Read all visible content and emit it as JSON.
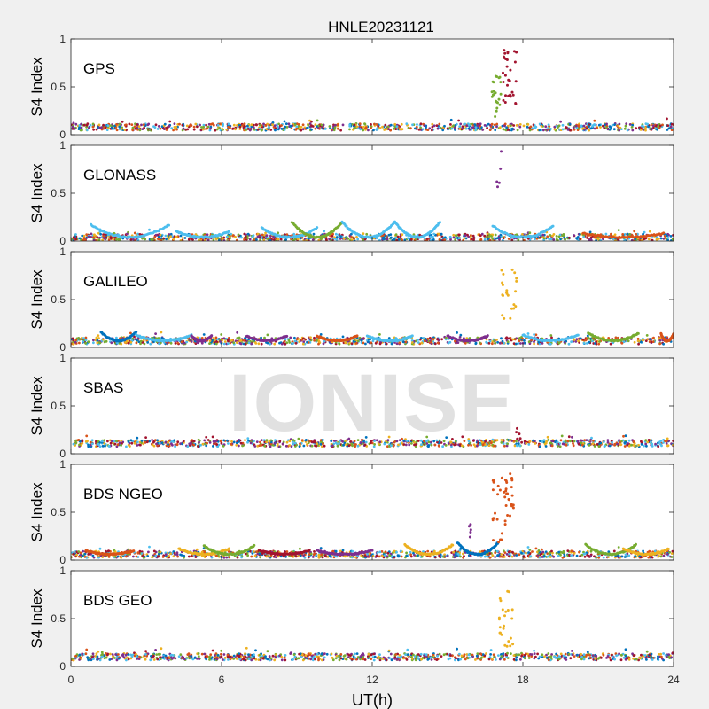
{
  "chart_data": {
    "type": "scatter",
    "title": "HNLE20231121",
    "xlabel": "UT(h)",
    "ylabel": "S4 Index",
    "xlim": [
      0,
      24
    ],
    "ylim": [
      0,
      1
    ],
    "xticks": [
      "0",
      "6",
      "12",
      "18",
      "24"
    ],
    "yticks": [
      "0",
      "0.5",
      "1"
    ],
    "grid": false,
    "watermark": "IONISE",
    "series_colors": [
      "#0072BD",
      "#D95319",
      "#EDB120",
      "#7E2F8E",
      "#77AC30",
      "#4DBEEE",
      "#A2142F"
    ],
    "panels": [
      {
        "label": "GPS",
        "label_color": "#000000",
        "baseline": 0.08,
        "arcs": [],
        "spikes": [
          {
            "x_range": [
              16.75,
              17.15
            ],
            "y_range": [
              0.12,
              0.62
            ],
            "color": "#77AC30",
            "count": 22
          },
          {
            "x_range": [
              17.2,
              17.75
            ],
            "y_range": [
              0.3,
              0.9
            ],
            "color": "#A2142F",
            "count": 30
          }
        ]
      },
      {
        "label": "GLONASS",
        "label_color": "#000000",
        "baseline": 0.04,
        "arcs": [
          {
            "x": [
              0.8,
              3.9
            ],
            "peak": 0.17,
            "color": "#4DBEEE"
          },
          {
            "x": [
              4.2,
              6.3
            ],
            "peak": 0.1,
            "color": "#4DBEEE"
          },
          {
            "x": [
              7.6,
              9.8
            ],
            "peak": 0.14,
            "color": "#4DBEEE"
          },
          {
            "x": [
              8.8,
              10.8
            ],
            "peak": 0.2,
            "color": "#77AC30"
          },
          {
            "x": [
              10.8,
              12.9
            ],
            "peak": 0.2,
            "color": "#4DBEEE"
          },
          {
            "x": [
              12.9,
              14.7
            ],
            "peak": 0.2,
            "color": "#4DBEEE"
          },
          {
            "x": [
              16.8,
              19.2
            ],
            "peak": 0.16,
            "color": "#4DBEEE"
          },
          {
            "x": [
              20.4,
              23.6
            ],
            "peak": 0.08,
            "color": "#D95319"
          }
        ],
        "spikes": [
          {
            "x_range": [
              16.95,
              17.15
            ],
            "y_range": [
              0.5,
              0.95
            ],
            "color": "#7E2F8E",
            "count": 5
          }
        ]
      },
      {
        "label": "GALILEO",
        "label_color": "#000000",
        "baseline": 0.07,
        "arcs": [
          {
            "x": [
              1.2,
              2.6
            ],
            "peak": 0.16,
            "color": "#0072BD"
          },
          {
            "x": [
              2.6,
              4.8
            ],
            "peak": 0.13,
            "color": "#4DBEEE"
          },
          {
            "x": [
              4.8,
              5.6
            ],
            "peak": 0.12,
            "color": "#7E2F8E"
          },
          {
            "x": [
              7.0,
              8.6
            ],
            "peak": 0.12,
            "color": "#7E2F8E"
          },
          {
            "x": [
              9.8,
              11.4
            ],
            "peak": 0.12,
            "color": "#D95319"
          },
          {
            "x": [
              11.8,
              13.6
            ],
            "peak": 0.12,
            "color": "#4DBEEE"
          },
          {
            "x": [
              15.0,
              16.6
            ],
            "peak": 0.12,
            "color": "#7E2F8E"
          },
          {
            "x": [
              18.0,
              20.2
            ],
            "peak": 0.13,
            "color": "#4DBEEE"
          },
          {
            "x": [
              20.6,
              22.6
            ],
            "peak": 0.15,
            "color": "#77AC30"
          },
          {
            "x": [
              23.5,
              24.0
            ],
            "peak": 0.14,
            "color": "#D95319"
          }
        ],
        "spikes": [
          {
            "x_range": [
              17.15,
              17.75
            ],
            "y_range": [
              0.3,
              0.82
            ],
            "color": "#EDB120",
            "count": 22
          }
        ]
      },
      {
        "label": "SBAS",
        "label_color": "#000000",
        "baseline": 0.11,
        "arcs": [],
        "spikes": [
          {
            "x_range": [
              17.7,
              18.0
            ],
            "y_range": [
              0.14,
              0.3
            ],
            "color": "#A2142F",
            "count": 5
          }
        ]
      },
      {
        "label": "BDS NGEO",
        "label_color": "#000000",
        "baseline": 0.06,
        "arcs": [
          {
            "x": [
              0.6,
              2.5
            ],
            "peak": 0.1,
            "color": "#D95319"
          },
          {
            "x": [
              4.3,
              6.3
            ],
            "peak": 0.12,
            "color": "#EDB120"
          },
          {
            "x": [
              5.3,
              7.3
            ],
            "peak": 0.15,
            "color": "#77AC30"
          },
          {
            "x": [
              7.5,
              9.5
            ],
            "peak": 0.1,
            "color": "#A2142F"
          },
          {
            "x": [
              9.8,
              12.0
            ],
            "peak": 0.1,
            "color": "#7E2F8E"
          },
          {
            "x": [
              13.3,
              15.2
            ],
            "peak": 0.16,
            "color": "#EDB120"
          },
          {
            "x": [
              15.4,
              17.0
            ],
            "peak": 0.18,
            "color": "#0072BD"
          },
          {
            "x": [
              20.5,
              22.5
            ],
            "peak": 0.16,
            "color": "#77AC30"
          },
          {
            "x": [
              22.0,
              23.8
            ],
            "peak": 0.12,
            "color": "#EDB120"
          }
        ],
        "spikes": [
          {
            "x_range": [
              15.85,
              16.05
            ],
            "y_range": [
              0.2,
              0.38
            ],
            "color": "#7E2F8E",
            "count": 5
          },
          {
            "x_range": [
              16.8,
              17.2
            ],
            "y_range": [
              0.12,
              0.95
            ],
            "color": "#D95319",
            "count": 18
          },
          {
            "x_range": [
              17.25,
              17.65
            ],
            "y_range": [
              0.25,
              0.95
            ],
            "color": "#D95319",
            "count": 26
          }
        ]
      },
      {
        "label": "BDS GEO",
        "label_color": "#000000",
        "baseline": 0.1,
        "arcs": [],
        "spikes": [
          {
            "x_range": [
              17.05,
              17.6
            ],
            "y_range": [
              0.2,
              0.82
            ],
            "color": "#EDB120",
            "count": 24
          }
        ]
      }
    ]
  }
}
